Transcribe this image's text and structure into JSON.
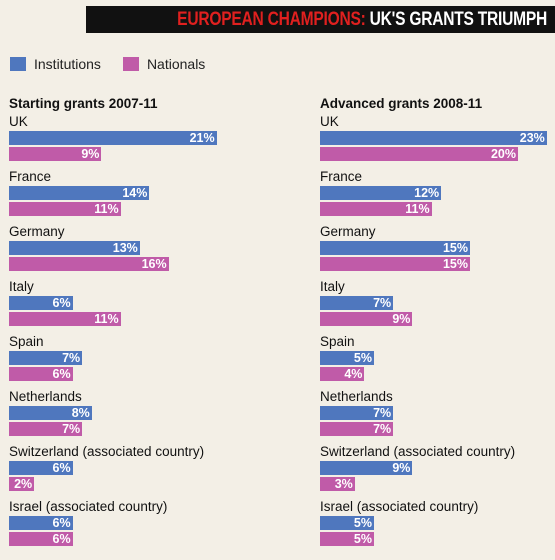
{
  "title": {
    "part1": "EUROPEAN CHAMPIONS:",
    "part2": "UK'S GRANTS TRIUMPH"
  },
  "legend": [
    {
      "label": "Institutions",
      "color": "#4f77be"
    },
    {
      "label": "Nationals",
      "color": "#c05ba8"
    }
  ],
  "chart_data": [
    {
      "type": "bar",
      "title": "Starting grants 2007-11",
      "categories": [
        "UK",
        "France",
        "Germany",
        "Italy",
        "Spain",
        "Netherlands",
        "Switzerland (associated country)",
        "Israel (associated country)"
      ],
      "series": [
        {
          "name": "Institutions",
          "values": [
            21,
            14,
            13,
            6,
            7,
            8,
            6,
            6
          ]
        },
        {
          "name": "Nationals",
          "values": [
            9,
            11,
            16,
            11,
            6,
            7,
            2,
            6
          ]
        }
      ],
      "unit": "%"
    },
    {
      "type": "bar",
      "title": "Advanced grants 2008-11",
      "categories": [
        "UK",
        "France",
        "Germany",
        "Italy",
        "Spain",
        "Netherlands",
        "Switzerland (associated country)",
        "Israel (associated country)"
      ],
      "series": [
        {
          "name": "Institutions",
          "values": [
            23,
            12,
            15,
            7,
            5,
            7,
            9,
            5
          ]
        },
        {
          "name": "Nationals",
          "values": [
            20,
            11,
            15,
            9,
            4,
            7,
            3,
            5
          ]
        }
      ],
      "unit": "%"
    }
  ]
}
